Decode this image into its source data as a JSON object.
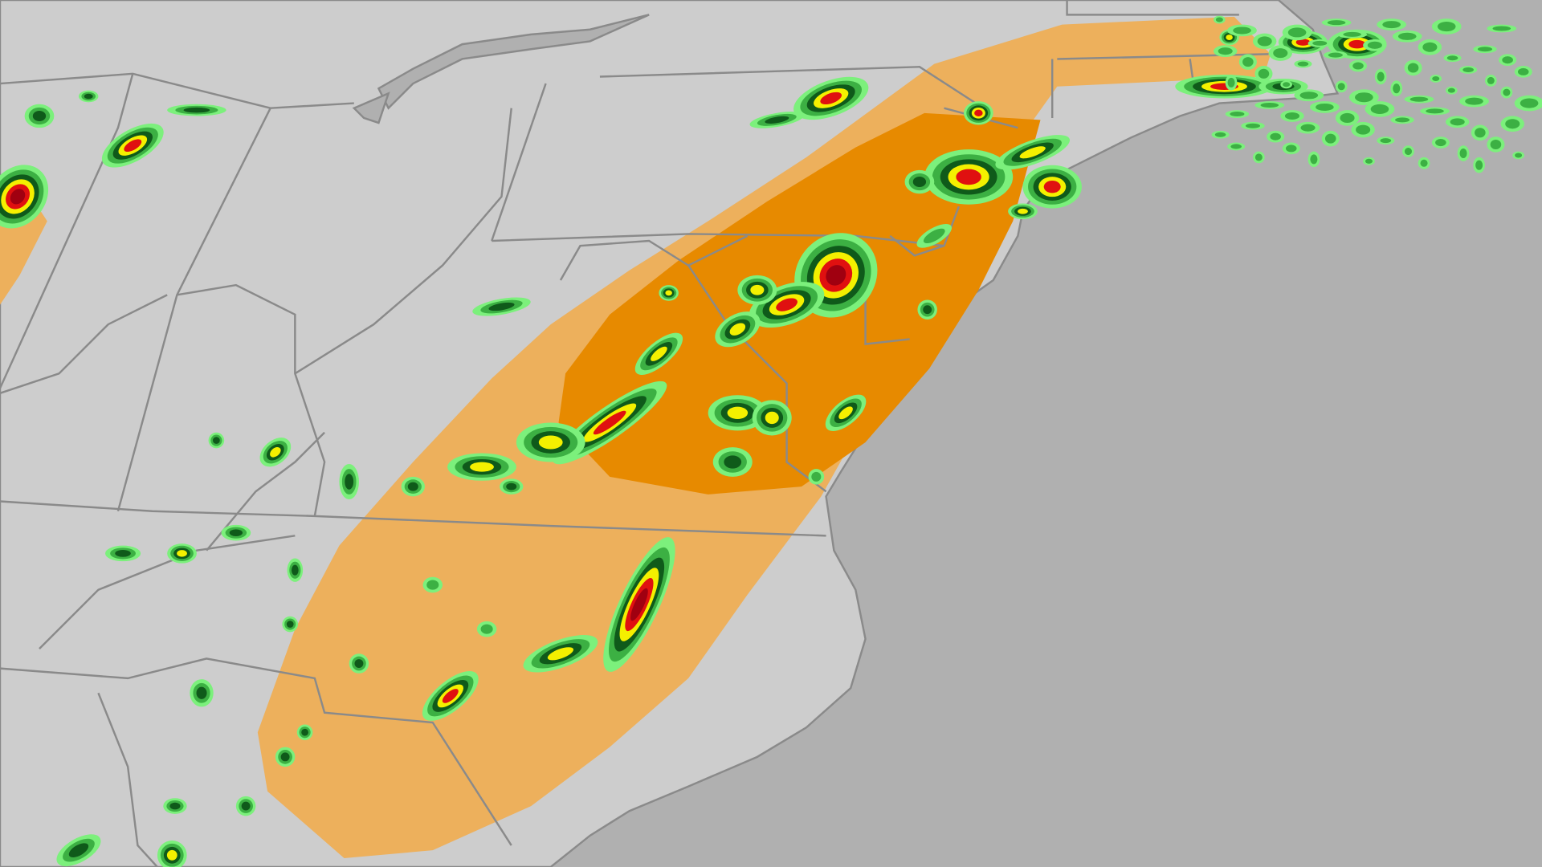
{
  "map": {
    "colors": {
      "ocean": "#b0b0b0",
      "land": "#cdcdcd",
      "boundary": "#8a8a8a",
      "risk_slight": "#edb05c",
      "risk_enhanced": "#e78a00",
      "radar_light_green": "#7cf07c",
      "radar_green": "#3cb043",
      "radar_dark_green": "#0f5a1a",
      "radar_yellow": "#f4f000",
      "radar_red": "#e01010",
      "radar_dark_red": "#a00010"
    }
  }
}
